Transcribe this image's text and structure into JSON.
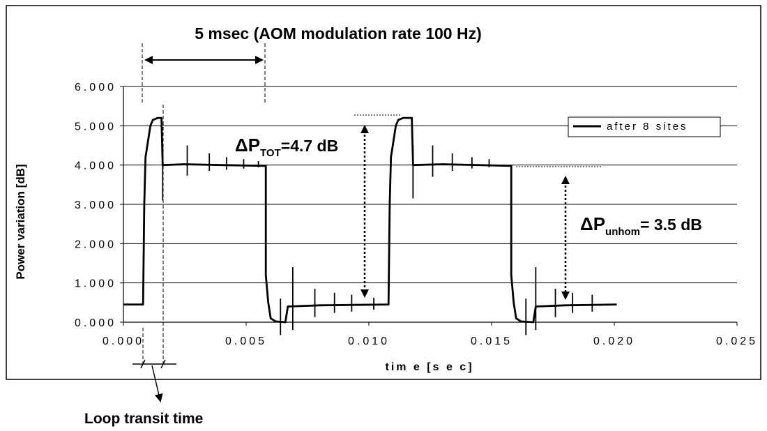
{
  "chart_data": {
    "type": "line",
    "ylabel": "Power variation [dB]",
    "xlabel": "tim e [s e c]",
    "xlim": [
      0,
      0.025
    ],
    "ylim": [
      0,
      6
    ],
    "x_ticks": [
      0,
      0.005,
      0.01,
      0.015,
      0.02,
      0.025
    ],
    "x_tick_labels": [
      "0.000",
      "0.005",
      "0.010",
      "0.015",
      "0.020",
      "0.025"
    ],
    "y_ticks": [
      0,
      1,
      2,
      3,
      4,
      5,
      6
    ],
    "y_tick_labels": [
      "0.000",
      "1.000",
      "2.000",
      "3.000",
      "4.000",
      "5.000",
      "6.000"
    ],
    "grid": "horizontal",
    "legend_position": "top-right",
    "series": [
      {
        "name": "after 8 sites",
        "color": "#000000",
        "points": [
          [
            0.0,
            0.45
          ],
          [
            0.0008,
            0.45
          ],
          [
            0.00085,
            3.0
          ],
          [
            0.0009,
            4.2
          ],
          [
            0.001,
            4.6
          ],
          [
            0.0011,
            5.0
          ],
          [
            0.0012,
            5.15
          ],
          [
            0.0014,
            5.2
          ],
          [
            0.00155,
            5.2
          ],
          [
            0.0016,
            4.0
          ],
          [
            0.0025,
            4.02
          ],
          [
            0.004,
            4.0
          ],
          [
            0.0058,
            3.98
          ],
          [
            0.0058,
            1.2
          ],
          [
            0.0059,
            0.5
          ],
          [
            0.006,
            0.1
          ],
          [
            0.0062,
            0.02
          ],
          [
            0.0066,
            0.0
          ],
          [
            0.0067,
            0.4
          ],
          [
            0.008,
            0.43
          ],
          [
            0.0108,
            0.45
          ],
          [
            0.01085,
            3.0
          ],
          [
            0.0109,
            4.2
          ],
          [
            0.011,
            4.6
          ],
          [
            0.0111,
            5.0
          ],
          [
            0.0112,
            5.15
          ],
          [
            0.0114,
            5.2
          ],
          [
            0.01175,
            5.2
          ],
          [
            0.0118,
            4.0
          ],
          [
            0.013,
            4.02
          ],
          [
            0.0158,
            3.98
          ],
          [
            0.0158,
            1.2
          ],
          [
            0.0159,
            0.5
          ],
          [
            0.016,
            0.1
          ],
          [
            0.0162,
            0.02
          ],
          [
            0.0167,
            0.0
          ],
          [
            0.0168,
            0.4
          ],
          [
            0.018,
            0.43
          ],
          [
            0.0201,
            0.45
          ]
        ],
        "spikes": [
          [
            0.0016,
            3.1
          ],
          [
            0.0026,
            4.5
          ],
          [
            0.0035,
            4.3
          ],
          [
            0.0042,
            4.2
          ],
          [
            0.0049,
            4.15
          ],
          [
            0.0055,
            4.1
          ],
          [
            0.0064,
            0.6
          ],
          [
            0.0069,
            1.4
          ],
          [
            0.0078,
            0.85
          ],
          [
            0.0086,
            0.75
          ],
          [
            0.0093,
            0.7
          ],
          [
            0.0102,
            0.62
          ],
          [
            0.0118,
            3.15
          ],
          [
            0.0126,
            4.5
          ],
          [
            0.0134,
            4.3
          ],
          [
            0.0142,
            4.2
          ],
          [
            0.0149,
            4.15
          ],
          [
            0.0164,
            0.6
          ],
          [
            0.0168,
            1.4
          ],
          [
            0.0176,
            0.85
          ],
          [
            0.0183,
            0.75
          ],
          [
            0.0191,
            0.7
          ]
        ]
      }
    ],
    "annotations": {
      "period": "5 msec (AOM modulation rate 100 Hz)",
      "dp_tot_prefix": "ΔP",
      "dp_tot_sub": "TOT",
      "dp_tot_value": "=4.7 dB",
      "dp_unhom_prefix": "ΔP",
      "dp_unhom_sub": "unhom",
      "dp_unhom_value": "= 3.5 dB",
      "loop_transit": "Loop transit time"
    }
  }
}
